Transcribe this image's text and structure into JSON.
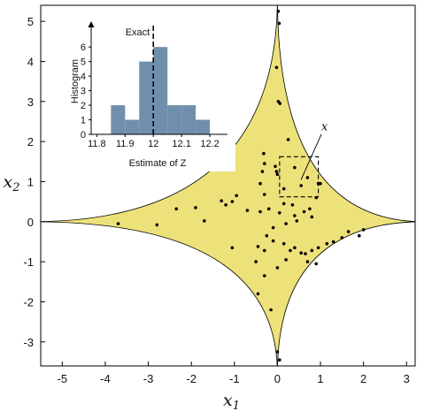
{
  "chart_data": [
    {
      "type": "scatter",
      "xlabel": "x",
      "xlabel_sub": "1",
      "ylabel": "x",
      "ylabel_sub": "2",
      "xlim": [
        -5.5,
        3.2
      ],
      "ylim": [
        -3.6,
        5.4
      ],
      "xticks": [
        -5,
        -4,
        -3,
        -2,
        -1,
        0,
        1,
        2,
        3
      ],
      "yticks": [
        -3,
        -2,
        -1,
        0,
        1,
        2,
        3,
        4,
        5
      ],
      "region_color": "#ede27a",
      "point_color": "#000000",
      "annotation": {
        "label": "x",
        "box_x": [
          0.05,
          0.95
        ],
        "box_y": [
          0.62,
          1.62
        ]
      },
      "points": [
        [
          0.02,
          5.25
        ],
        [
          0.04,
          4.95
        ],
        [
          -0.02,
          3.85
        ],
        [
          0.02,
          3.0
        ],
        [
          0.06,
          2.95
        ],
        [
          0.25,
          2.05
        ],
        [
          -0.32,
          1.7
        ],
        [
          -0.3,
          1.45
        ],
        [
          -0.35,
          1.25
        ],
        [
          -0.05,
          1.38
        ],
        [
          -0.02,
          1.25
        ],
        [
          0.0,
          1.18
        ],
        [
          0.4,
          1.35
        ],
        [
          0.7,
          1.1
        ],
        [
          0.55,
          0.9
        ],
        [
          0.15,
          0.82
        ],
        [
          0.95,
          0.95
        ],
        [
          1.0,
          0.95
        ],
        [
          -0.4,
          0.95
        ],
        [
          -0.3,
          0.68
        ],
        [
          -1.3,
          0.52
        ],
        [
          -1.2,
          0.42
        ],
        [
          -1.05,
          0.5
        ],
        [
          -0.95,
          0.65
        ],
        [
          -0.7,
          0.28
        ],
        [
          -0.4,
          0.25
        ],
        [
          -0.2,
          0.32
        ],
        [
          0.05,
          0.22
        ],
        [
          0.15,
          0.45
        ],
        [
          0.35,
          0.42
        ],
        [
          0.4,
          0.15
        ],
        [
          0.62,
          0.25
        ],
        [
          0.75,
          0.32
        ],
        [
          0.9,
          0.6
        ],
        [
          0.8,
          0.12
        ],
        [
          0.45,
          0.02
        ],
        [
          0.2,
          -0.05
        ],
        [
          -0.1,
          -0.15
        ],
        [
          -0.25,
          -0.35
        ],
        [
          -0.45,
          -0.62
        ],
        [
          -0.3,
          -0.72
        ],
        [
          -0.1,
          -0.48
        ],
        [
          0.15,
          -0.55
        ],
        [
          0.3,
          -0.72
        ],
        [
          0.4,
          -0.65
        ],
        [
          0.55,
          -0.78
        ],
        [
          0.65,
          -0.8
        ],
        [
          0.8,
          -0.72
        ],
        [
          0.95,
          -0.65
        ],
        [
          1.15,
          -0.55
        ],
        [
          1.3,
          -0.5
        ],
        [
          1.5,
          -0.4
        ],
        [
          0.2,
          -0.95
        ],
        [
          0.7,
          -1.0
        ],
        [
          0.9,
          -1.05
        ],
        [
          -0.5,
          -1.0
        ],
        [
          0.0,
          -1.15
        ],
        [
          -0.3,
          -1.35
        ],
        [
          -0.45,
          -1.8
        ],
        [
          -0.15,
          -2.2
        ],
        [
          0.0,
          -3.25
        ],
        [
          0.05,
          -3.45
        ],
        [
          -1.9,
          0.35
        ],
        [
          -2.35,
          0.32
        ],
        [
          -2.8,
          -0.08
        ],
        [
          -1.7,
          0.02
        ],
        [
          -1.05,
          -0.65
        ],
        [
          -3.7,
          -0.05
        ],
        [
          1.65,
          -0.25
        ],
        [
          1.9,
          -0.35
        ],
        [
          2.0,
          -0.2
        ]
      ]
    },
    {
      "type": "bar",
      "title": "",
      "xlabel": "Estimate of Z",
      "ylabel": "Histogram",
      "xlim": [
        11.78,
        12.25
      ],
      "ylim": [
        0,
        6.8
      ],
      "xticks": [
        "11.8",
        "11.9",
        "12",
        "12.1",
        "12.2"
      ],
      "yticks": [
        0,
        1,
        2,
        3,
        4,
        5,
        6
      ],
      "bin_edges": [
        11.85,
        11.9,
        11.95,
        12.0,
        12.05,
        12.1,
        12.15,
        12.2
      ],
      "values": [
        2,
        1,
        5,
        6,
        2,
        2,
        1
      ],
      "bar_color": "#6f8fac",
      "reference_line": {
        "label": "Exact",
        "x": 12.0
      }
    }
  ]
}
